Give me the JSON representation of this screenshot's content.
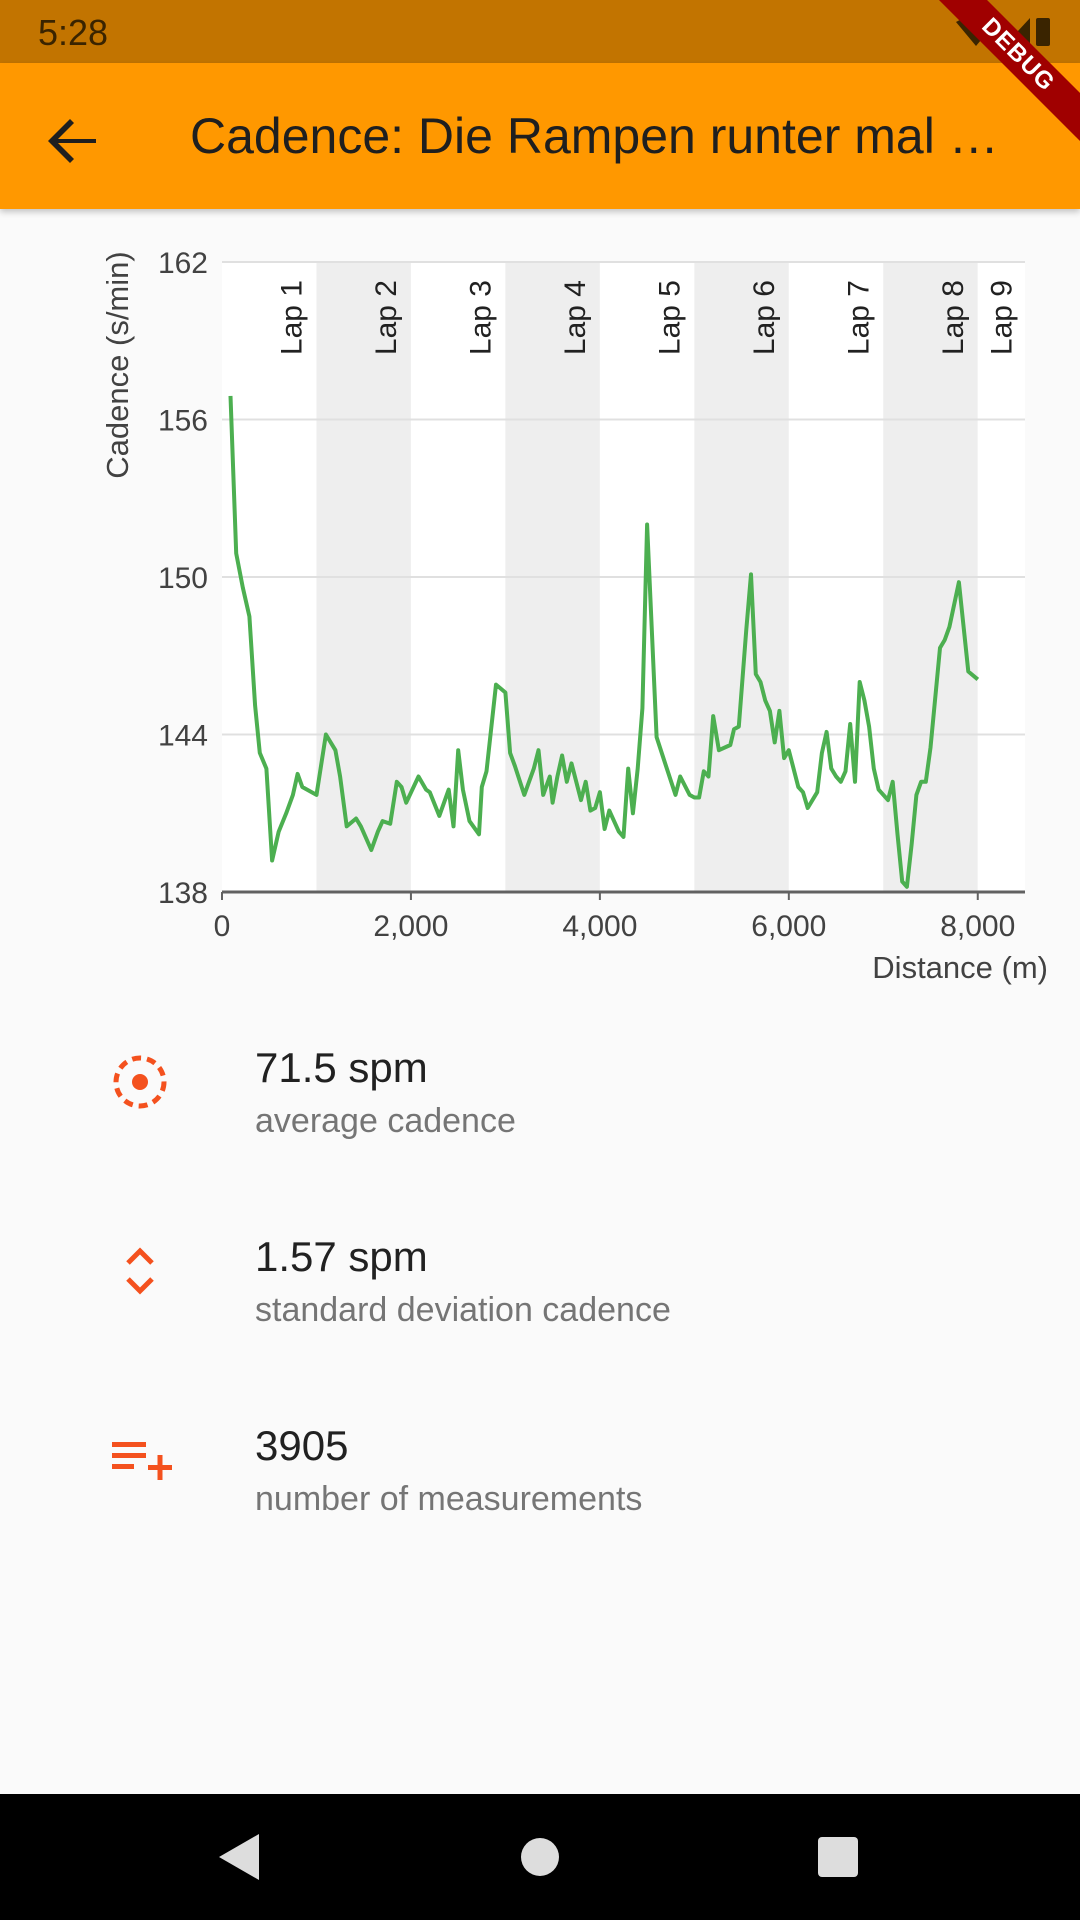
{
  "status_bar": {
    "time": "5:28",
    "icons": [
      "wifi-icon",
      "signal-icon",
      "battery-icon"
    ]
  },
  "app_bar": {
    "title": "Cadence: Die Rampen runter mal …",
    "back_icon": "arrow-back-icon",
    "debug_label": "DEBUG"
  },
  "colors": {
    "accent": "#ff9800",
    "status": "#c27400",
    "line": "#4caf50",
    "icon": "#f4511e"
  },
  "chart_data": {
    "type": "line",
    "ylabel": "Cadence (s/min)",
    "xlabel": "Distance (m)",
    "ylim": [
      138,
      162
    ],
    "xlim": [
      0,
      8500
    ],
    "yticks": [
      "138",
      "144",
      "150",
      "156",
      "162"
    ],
    "xticks": [
      {
        "v": 0,
        "label": "0"
      },
      {
        "v": 2000,
        "label": "2,000"
      },
      {
        "v": 4000,
        "label": "4,000"
      },
      {
        "v": 6000,
        "label": "6,000"
      },
      {
        "v": 8000,
        "label": "8,000"
      }
    ],
    "grid": true,
    "laps": [
      {
        "label": "Lap 1",
        "start": 0,
        "end": 1000,
        "shade": false
      },
      {
        "label": "Lap 2",
        "start": 1000,
        "end": 2000,
        "shade": true
      },
      {
        "label": "Lap 3",
        "start": 2000,
        "end": 3000,
        "shade": false
      },
      {
        "label": "Lap 4",
        "start": 3000,
        "end": 4000,
        "shade": true
      },
      {
        "label": "Lap 5",
        "start": 4000,
        "end": 5000,
        "shade": false
      },
      {
        "label": "Lap 6",
        "start": 5000,
        "end": 6000,
        "shade": true
      },
      {
        "label": "Lap 7",
        "start": 6000,
        "end": 7000,
        "shade": false
      },
      {
        "label": "Lap 8",
        "start": 7000,
        "end": 8000,
        "shade": true
      },
      {
        "label": "Lap 9",
        "start": 8000,
        "end": 8500,
        "shade": false
      }
    ],
    "series": [
      {
        "x": [
          90,
          150,
          220,
          290,
          350,
          400,
          470,
          530,
          600,
          680,
          750,
          800,
          850,
          1000,
          1100,
          1200,
          1250,
          1320,
          1420,
          1470,
          1580,
          1650,
          1700,
          1780,
          1850,
          1900,
          1950,
          2080,
          2160,
          2200,
          2300,
          2400,
          2450,
          2500,
          2550,
          2620,
          2720,
          2750,
          2800,
          2900,
          3000,
          3050,
          3100,
          3200,
          3300,
          3350,
          3400,
          3470,
          3500,
          3550,
          3600,
          3650,
          3700,
          3800,
          3850,
          3900,
          3950,
          4000,
          4050,
          4100,
          4200,
          4250,
          4300,
          4350,
          4400,
          4450,
          4500,
          4600,
          4700,
          4800,
          4850,
          4950,
          5000,
          5050,
          5100,
          5150,
          5200,
          5260,
          5380,
          5420,
          5470,
          5550,
          5600,
          5650,
          5700,
          5750,
          5800,
          5850,
          5900,
          5950,
          6000,
          6100,
          6150,
          6200,
          6300,
          6350,
          6400,
          6450,
          6500,
          6550,
          6600,
          6650,
          6700,
          6750,
          6800,
          6850,
          6900,
          6950,
          7050,
          7100,
          7150,
          7200,
          7250,
          7300,
          7350,
          7400,
          7450,
          7500,
          7600,
          7650,
          7700,
          7800,
          7900,
          8000
        ],
        "y": [
          156.9,
          150.9,
          149.6,
          148.5,
          145.1,
          143.3,
          142.7,
          139.2,
          140.3,
          141.0,
          141.7,
          142.5,
          142.0,
          141.7,
          144.0,
          143.4,
          142.4,
          140.5,
          140.8,
          140.5,
          139.6,
          140.3,
          140.7,
          140.6,
          142.2,
          142.0,
          141.4,
          142.4,
          141.9,
          141.8,
          140.9,
          141.9,
          140.5,
          143.4,
          141.9,
          140.7,
          140.2,
          142.0,
          142.6,
          145.9,
          145.6,
          143.3,
          142.8,
          141.7,
          142.7,
          143.4,
          141.7,
          142.4,
          141.4,
          142.4,
          143.2,
          142.2,
          142.9,
          141.5,
          142.2,
          141.1,
          141.2,
          141.8,
          140.4,
          141.1,
          140.3,
          140.1,
          142.7,
          141.0,
          142.7,
          145.0,
          152.0,
          143.9,
          142.8,
          141.7,
          142.4,
          141.7,
          141.6,
          141.6,
          142.6,
          142.4,
          144.7,
          143.4,
          143.6,
          144.2,
          144.3,
          148.0,
          150.1,
          146.3,
          146.0,
          145.3,
          144.9,
          143.7,
          144.9,
          143.1,
          143.4,
          142.0,
          141.8,
          141.2,
          141.8,
          143.3,
          144.1,
          142.7,
          142.4,
          142.2,
          142.6,
          144.4,
          142.2,
          146.0,
          145.3,
          144.3,
          142.7,
          141.9,
          141.5,
          142.2,
          140.2,
          138.4,
          138.2,
          139.8,
          141.7,
          142.2,
          142.2,
          143.5,
          147.3,
          147.6,
          148.1,
          149.8,
          146.4,
          146.1
        ]
      }
    ]
  },
  "stats": [
    {
      "icon": "center-focus-icon",
      "value": "71.5 spm",
      "label": "average cadence"
    },
    {
      "icon": "unfold-more-icon",
      "value": "1.57 spm",
      "label": "standard deviation cadence"
    },
    {
      "icon": "playlist-add-icon",
      "value": "3905",
      "label": "number of measurements"
    }
  ],
  "nav_bar": {
    "icons": [
      "nav-back-icon",
      "nav-home-icon",
      "nav-recents-icon"
    ]
  }
}
